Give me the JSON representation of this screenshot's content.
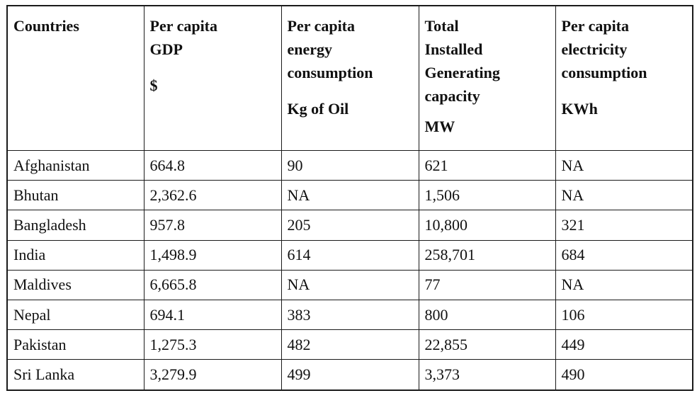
{
  "table": {
    "headers": [
      {
        "lines": [
          "Countries"
        ],
        "unit": ""
      },
      {
        "lines": [
          "Per capita",
          "GDP"
        ],
        "unit": "$"
      },
      {
        "lines": [
          "Per capita",
          "energy",
          "consumption"
        ],
        "unit": "Kg of Oil"
      },
      {
        "lines": [
          "Total",
          "Installed",
          "Generating",
          "capacity"
        ],
        "unit": "MW"
      },
      {
        "lines": [
          "Per capita",
          "electricity",
          "consumption"
        ],
        "unit": "KWh"
      }
    ],
    "rows": [
      [
        "Afghanistan",
        "664.8",
        "90",
        "621",
        "NA"
      ],
      [
        "Bhutan",
        "2,362.6",
        "NA",
        "1,506",
        "NA"
      ],
      [
        "Bangladesh",
        "957.8",
        "205",
        "10,800",
        "321"
      ],
      [
        "India",
        "1,498.9",
        "614",
        "258,701",
        "684"
      ],
      [
        "Maldives",
        "6,665.8",
        "NA",
        "77",
        "NA"
      ],
      [
        "Nepal",
        "694.1",
        "383",
        "800",
        "106"
      ],
      [
        "Pakistan",
        "1,275.3",
        "482",
        "22,855",
        "449"
      ],
      [
        "Sri Lanka",
        "3,279.9",
        "499",
        "3,373",
        "490"
      ]
    ]
  }
}
